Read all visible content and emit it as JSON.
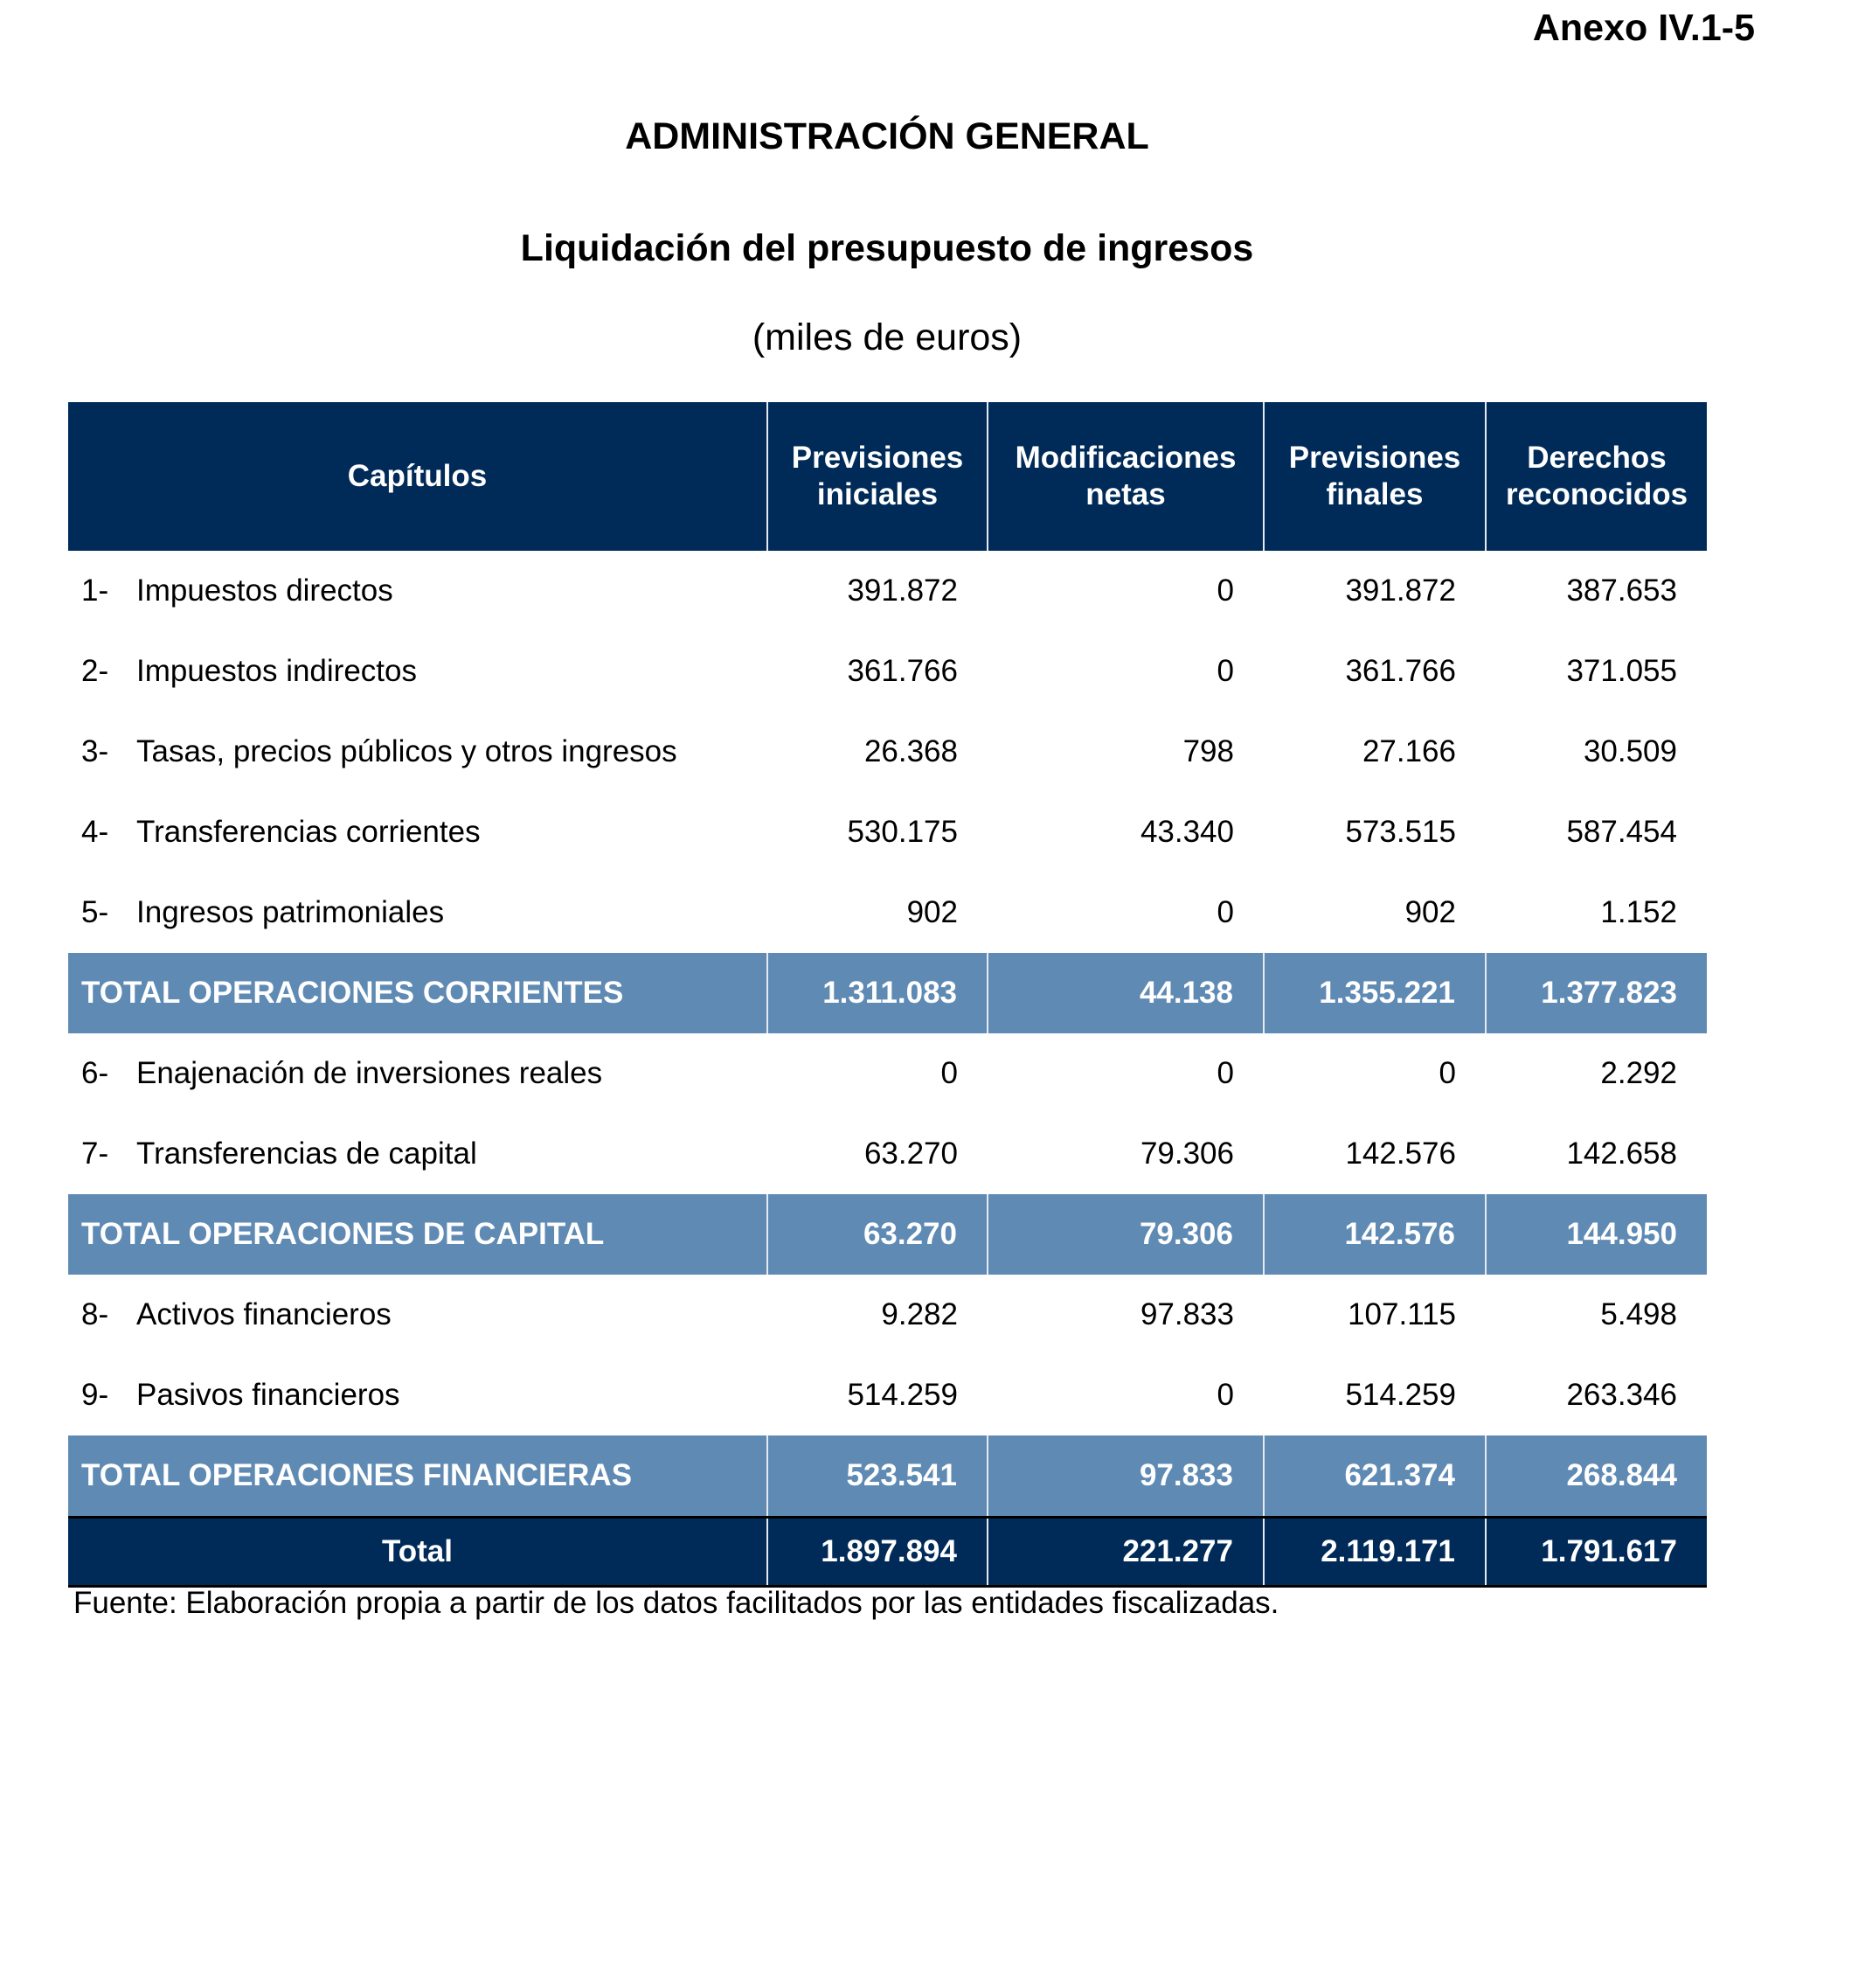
{
  "annex": "Anexo IV.1-5",
  "title": "ADMINISTRACIÓN GENERAL",
  "subtitle": "Liquidación del presupuesto de ingresos",
  "units": "(miles de euros)",
  "table": {
    "headers": {
      "chapters": "Capítulos",
      "initial_1": "Previsiones",
      "initial_2": "iniciales",
      "mods_1": "Modificaciones",
      "mods_2": "netas",
      "final_1": "Previsiones",
      "final_2": "finales",
      "rights_1": "Derechos",
      "rights_2": "reconocidos"
    },
    "rows": [
      {
        "no": "1-",
        "label": "Impuestos directos",
        "initial": "391.872",
        "mods": "0",
        "final": "391.872",
        "rights": "387.653"
      },
      {
        "no": "2-",
        "label": "Impuestos indirectos",
        "initial": "361.766",
        "mods": "0",
        "final": "361.766",
        "rights": "371.055"
      },
      {
        "no": "3-",
        "label": "Tasas, precios públicos y otros ingresos",
        "initial": "26.368",
        "mods": "798",
        "final": "27.166",
        "rights": "30.509"
      },
      {
        "no": "4-",
        "label": "Transferencias corrientes",
        "initial": "530.175",
        "mods": "43.340",
        "final": "573.515",
        "rights": "587.454"
      },
      {
        "no": "5-",
        "label": "Ingresos patrimoniales",
        "initial": "902",
        "mods": "0",
        "final": "902",
        "rights": "1.152"
      },
      {
        "label": "TOTAL OPERACIONES CORRIENTES",
        "initial": "1.311.083",
        "mods": "44.138",
        "final": "1.355.221",
        "rights": "1.377.823"
      },
      {
        "no": "6-",
        "label": "Enajenación de inversiones reales",
        "initial": "0",
        "mods": "0",
        "final": "0",
        "rights": "2.292"
      },
      {
        "no": "7-",
        "label": "Transferencias de capital",
        "initial": "63.270",
        "mods": "79.306",
        "final": "142.576",
        "rights": "142.658"
      },
      {
        "label": "TOTAL OPERACIONES DE CAPITAL",
        "initial": "63.270",
        "mods": "79.306",
        "final": "142.576",
        "rights": "144.950"
      },
      {
        "no": "8-",
        "label": "Activos financieros",
        "initial": "9.282",
        "mods": "97.833",
        "final": "107.115",
        "rights": "5.498"
      },
      {
        "no": "9-",
        "label": "Pasivos financieros",
        "initial": "514.259",
        "mods": "0",
        "final": "514.259",
        "rights": "263.346"
      },
      {
        "label": "TOTAL OPERACIONES FINANCIERAS",
        "initial": "523.541",
        "mods": "97.833",
        "final": "621.374",
        "rights": "268.844"
      },
      {
        "label": "Total",
        "initial": "1.897.894",
        "mods": "221.277",
        "final": "2.119.171",
        "rights": "1.791.617"
      }
    ]
  },
  "source": "Fuente: Elaboración propia a partir de los datos facilitados por las entidades fiscalizadas.",
  "colors": {
    "header_bg": "#002b59",
    "subtotal_bg": "#5f8ab4"
  }
}
